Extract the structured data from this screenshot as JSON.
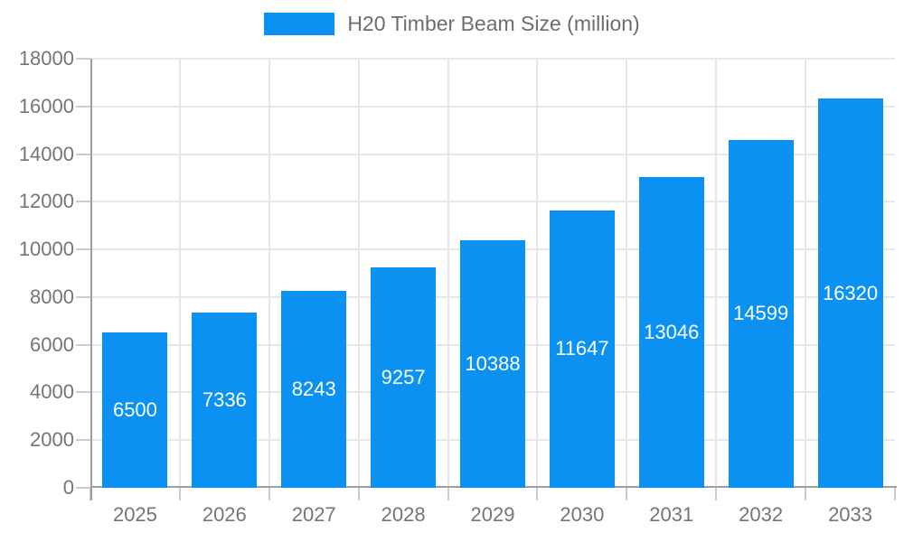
{
  "chart_data": {
    "type": "bar",
    "title": "H20 Timber Beam Size (million)",
    "series_name": "H20 Timber Beam Size (million)",
    "categories": [
      "2025",
      "2026",
      "2027",
      "2028",
      "2029",
      "2030",
      "2031",
      "2032",
      "2033"
    ],
    "values": [
      6500,
      7336,
      8243,
      9257,
      10388,
      11647,
      13046,
      14599,
      16320
    ],
    "xlabel": "",
    "ylabel": "",
    "ylim": [
      0,
      18000
    ],
    "ytick_step": 2000,
    "grid": true,
    "legend_position": "top",
    "bar_color": "#0a91f2",
    "bar_label_color": "#ffffff",
    "axis_text_color": "#757575",
    "legend_text_color": "#6d6d6d",
    "grid_color": "#e7e7e7",
    "axis_line_color": "#9e9e9e",
    "tick_color": "#cccccc",
    "background": "#ffffff"
  }
}
